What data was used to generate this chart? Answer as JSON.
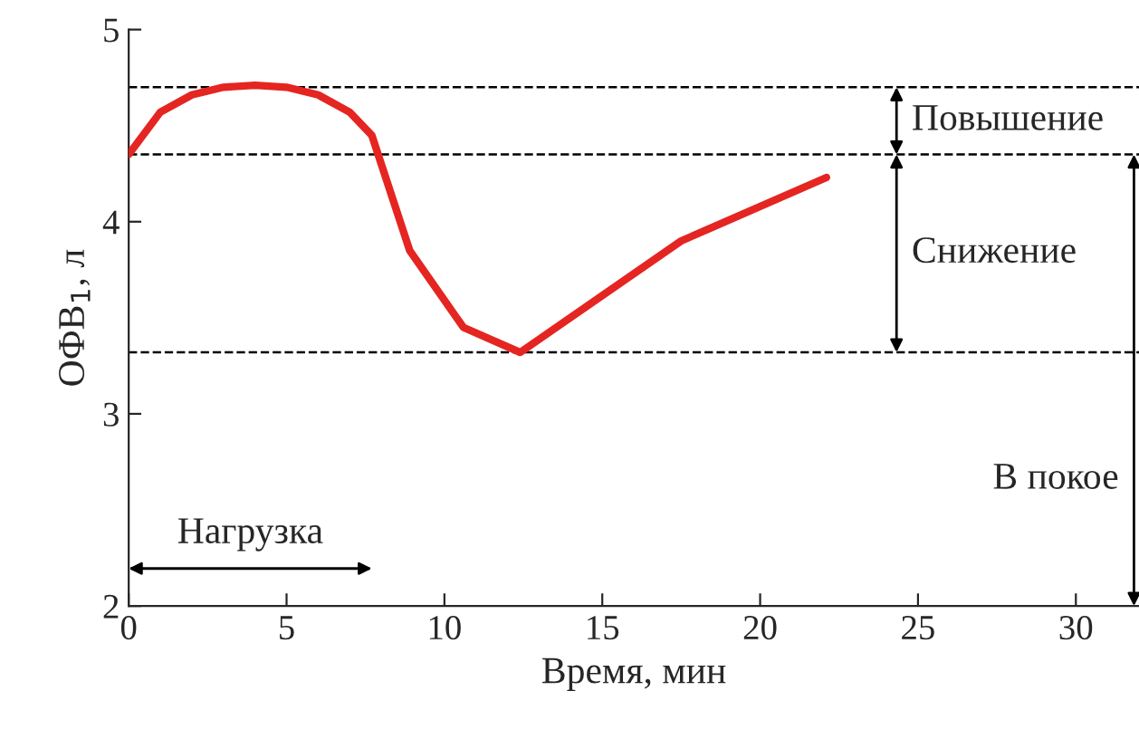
{
  "chart_data": {
    "type": "line",
    "xlabel": "Время, мин",
    "ylabel": "ОФВ$_{1}$, л",
    "x": [
      0,
      1,
      2,
      3,
      4,
      5,
      6,
      7,
      7.7,
      8.9,
      10.6,
      12.4,
      17.5,
      22.1
    ],
    "series": [
      {
        "color": "#e52521",
        "values": [
          4.35,
          4.57,
          4.66,
          4.7,
          4.71,
          4.7,
          4.66,
          4.57,
          4.45,
          3.85,
          3.45,
          3.32,
          3.9,
          4.23
        ]
      }
    ],
    "xlim": [
      0,
      32
    ],
    "ylim": [
      2,
      5
    ],
    "xticks": [
      0,
      5,
      10,
      15,
      20,
      25,
      30
    ],
    "yticks": [
      2,
      3,
      4,
      5
    ],
    "grid": false,
    "marker": "none",
    "line_style": "solid",
    "ref_lines": [
      {
        "axis": "y",
        "value": 4.7,
        "line_style": "dashed",
        "color": "#000000"
      },
      {
        "axis": "y",
        "value": 4.35,
        "line_style": "dashed",
        "color": "#000000"
      },
      {
        "axis": "y",
        "value": 3.32,
        "line_style": "dashed",
        "color": "#000000"
      }
    ],
    "annotations": [
      "Повышение",
      "Снижение",
      "В покое",
      "Нагрузка"
    ]
  }
}
